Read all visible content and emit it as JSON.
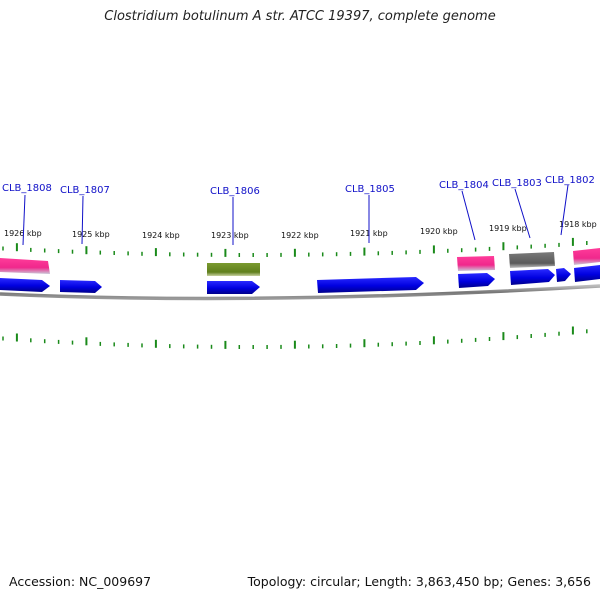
{
  "title": "Clostridium botulinum A str. ATCC 19397, complete genome",
  "accession": "Accession: NC_009697",
  "footer_info": "Topology: circular; Length: 3,863,450 bp; Genes: 3,656",
  "colors": {
    "backbone": "#8a8a8a",
    "tick": "#1a8a1a",
    "gene_blue": "#0a0ae6",
    "gene_pink": "#f0288c",
    "gene_olive": "#6b8e23",
    "gene_gray": "#6a6a6a",
    "label": "#1010c8"
  },
  "kbp_labels": [
    "1926 kbp",
    "1925 kbp",
    "1924 kbp",
    "1923 kbp",
    "1922 kbp",
    "1921 kbp",
    "1920 kbp",
    "1919 kbp",
    "1918 kbp"
  ],
  "gene_labels": [
    "CLB_1808",
    "CLB_1807",
    "CLB_1806",
    "CLB_1805",
    "CLB_1804",
    "CLB_1803",
    "CLB_1802"
  ]
}
